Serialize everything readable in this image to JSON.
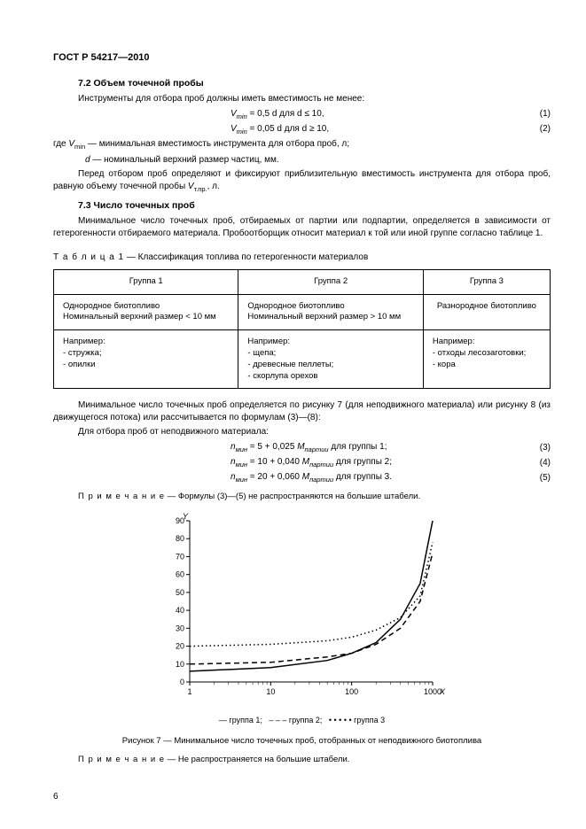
{
  "doc_title": "ГОСТ Р 54217—2010",
  "sec72_title": "7.2  Объем точечной пробы",
  "sec72_intro": "Инструменты для отбора проб должны иметь вместимость не менее:",
  "eq1_lhs": "V",
  "eq1_sub": "min",
  "eq1_rhs": " = 0,5 d для d ≤ 10,",
  "eq2_lhs": "V",
  "eq2_sub": "min",
  "eq2_rhs": " = 0,05 d для d ≥ 10,",
  "eq1_num": "(1)",
  "eq2_num": "(2)",
  "where_intro": "где ",
  "where1_sym": "V",
  "where1_sub": "min",
  "where1_txt": " — минимальная вместимость инструмента для отбора проб, л;",
  "where2_sym": "d",
  "where2_txt": " — номинальный верхний размер частиц, мм.",
  "sec72_p2a": "Перед отбором проб определяют и фиксируют приблизительную вместимость инструмента для отбора проб, равную объему точечной пробы ",
  "sec72_p2_sym": "V",
  "sec72_p2_sub": "т.пр.",
  "sec72_p2_tail": ", л.",
  "sec73_title": "7.3  Число точечных проб",
  "sec73_p1": "Минимальное число точечных проб, отбираемых от партии или подпартии, определяется в зависимости от гетерогенности отбираемого материала. Пробоотборщик относит материал к той или иной группе согласно таблице 1.",
  "table1_caption_lbl": "Т а б л и ц а   1",
  "table1_caption_txt": " — Классификация топлива по гетерогенности материалов",
  "table": {
    "headers": [
      "Группа 1",
      "Группа 2",
      "Группа 3"
    ],
    "row1": [
      "Однородное биотопливо\nНоминальный верхний размер < 10 мм",
      "Однородное биотопливо\nНоминальный верхний размер > 10 мм",
      "Разнородное биотопливо"
    ],
    "row2_label": "Например:",
    "row2": [
      [
        "стружка;",
        "опилки"
      ],
      [
        "щепа;",
        "древесные пеллеты;",
        "скорлупа орехов"
      ],
      [
        "отходы лесозаготовки;",
        "кора"
      ]
    ]
  },
  "after_tbl_p1": "Минимальное число точечных проб определяется по рисунку 7 (для неподвижного материала) или рисунку 8 (из движущегося потока) или рассчитывается по формулам (3)—(8):",
  "after_tbl_p2": "Для отбора проб от неподвижного материала:",
  "eq3_sym": "n",
  "eq3_sub": "мин",
  "eq3_rhs_a": " = 5 + 0,025 ",
  "eq3_M": "M",
  "eq3_Msub": "партии",
  "eq3_tail": " для группы 1;",
  "eq4_rhs_a": " = 10 + 0,040 ",
  "eq4_tail": " для группы 2;",
  "eq5_rhs_a": " = 20 + 0,060 ",
  "eq5_tail": " для группы 3.",
  "eq3_num": "(3)",
  "eq4_num": "(4)",
  "eq5_num": "(5)",
  "note1_lbl": "П р и м е ч а н и е",
  "note1_txt": " — Формулы (3)—(5) не распространяются на большие штабели.",
  "chart": {
    "type": "line",
    "x_label": "X",
    "y_label": "Y",
    "x_scale": "log",
    "xlim": [
      1,
      1000
    ],
    "ylim": [
      0,
      90
    ],
    "x_ticks": [
      1,
      10,
      100,
      1000
    ],
    "y_ticks": [
      0,
      10,
      20,
      30,
      40,
      50,
      60,
      70,
      80,
      90
    ],
    "y_tick_step": 10,
    "axis_color": "#000000",
    "grid_color": "#e0e0e0",
    "background_color": "#ffffff",
    "line_width": 1.5,
    "axis_fontsize": 9,
    "series": [
      {
        "name": "группа 1",
        "style": "solid",
        "points": [
          [
            1,
            6
          ],
          [
            10,
            8
          ],
          [
            50,
            12
          ],
          [
            100,
            16
          ],
          [
            200,
            22
          ],
          [
            400,
            35
          ],
          [
            700,
            55
          ],
          [
            1000,
            90
          ]
        ]
      },
      {
        "name": "группа 2",
        "style": "dashed",
        "points": [
          [
            1,
            10
          ],
          [
            10,
            11
          ],
          [
            50,
            14
          ],
          [
            100,
            16
          ],
          [
            200,
            21
          ],
          [
            400,
            30
          ],
          [
            700,
            45
          ],
          [
            1000,
            72
          ]
        ]
      },
      {
        "name": "группа 3",
        "style": "dotted",
        "points": [
          [
            1,
            20
          ],
          [
            10,
            21
          ],
          [
            50,
            23
          ],
          [
            100,
            25
          ],
          [
            200,
            29
          ],
          [
            400,
            36
          ],
          [
            700,
            48
          ],
          [
            1000,
            78
          ]
        ]
      }
    ],
    "legend": {
      "s1": "— группа 1;",
      "s2": "– – – группа 2;",
      "s3": "• • • • • группа 3"
    }
  },
  "fig7_caption": "Рисунок 7 — Минимальное число точечных проб, отобранных от неподвижного биотоплива",
  "note2_lbl": "П р и м е ч а н и е",
  "note2_txt": " — Не распространяется на большие штабели.",
  "page_number": "6"
}
